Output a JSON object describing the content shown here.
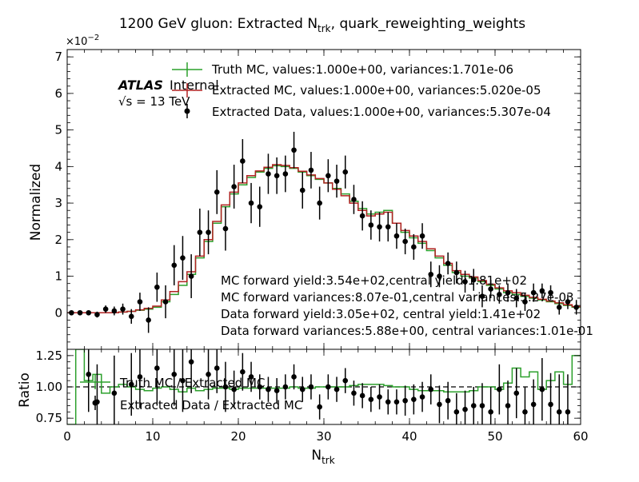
{
  "chart_data": [
    {
      "type": "line",
      "panel": "main",
      "title_prefix": "1200 GeV gluon: Extracted N",
      "title_sub": "trk",
      "title_suffix": ", quark_reweighting_weights",
      "ylabel": "Normalized",
      "y_multiplier": "×10",
      "y_multiplier_exp": "−2",
      "xlim": [
        0,
        60
      ],
      "ylim": [
        -1,
        7.2
      ],
      "x_ticks": [
        0,
        10,
        20,
        30,
        40,
        50,
        60
      ],
      "y_ticks": [
        0,
        1,
        2,
        3,
        4,
        5,
        6,
        7
      ],
      "atlas_label": "ATLAS",
      "atlas_sub": "Internal",
      "energy_label": "√s = 13 TeV",
      "annotations": [
        "MC forward yield:3.54e+02,central yield:1.81e+02",
        "MC forward variances:8.07e-01,central variances:5.27e-03",
        "Data forward yield:3.05e+02, central yield:1.41e+02",
        "Data forward variances:5.88e+00, central variances:1.01e-01"
      ],
      "legend_position": "top-right",
      "series": [
        {
          "name": "Truth MC, values:1.000e+00, variances:1.701e-06",
          "style": "step",
          "color": "#2ca02c",
          "values": [
            0,
            0,
            0,
            0,
            0,
            0,
            0.02,
            0.04,
            0.07,
            0.1,
            0.15,
            0.3,
            0.5,
            0.75,
            1.05,
            1.5,
            1.95,
            2.45,
            2.9,
            3.25,
            3.5,
            3.7,
            3.85,
            3.95,
            4.02,
            4.0,
            3.95,
            3.85,
            3.75,
            3.65,
            3.55,
            3.4,
            3.25,
            3.05,
            2.85,
            2.7,
            2.75,
            2.8,
            2.45,
            2.2,
            2.05,
            1.9,
            1.7,
            1.5,
            1.3,
            1.1,
            1.0,
            0.95,
            0.85,
            0.75,
            0.65,
            0.55,
            0.5,
            0.45,
            0.4,
            0.35,
            0.3,
            0.25,
            0.2,
            0.15
          ]
        },
        {
          "name": "Extracted MC, values:1.000e+00, variances:5.020e-05",
          "style": "step",
          "color": "#b22222",
          "values": [
            0,
            0,
            0,
            0,
            0,
            0,
            0.02,
            0.04,
            0.08,
            0.12,
            0.18,
            0.35,
            0.58,
            0.85,
            1.12,
            1.55,
            2.0,
            2.5,
            2.95,
            3.3,
            3.55,
            3.75,
            3.88,
            3.98,
            4.05,
            4.03,
            3.97,
            3.87,
            3.77,
            3.67,
            3.55,
            3.38,
            3.2,
            3.0,
            2.8,
            2.65,
            2.7,
            2.75,
            2.45,
            2.25,
            2.1,
            1.95,
            1.75,
            1.55,
            1.35,
            1.15,
            1.05,
            0.98,
            0.88,
            0.78,
            0.68,
            0.6,
            0.55,
            0.48,
            0.42,
            0.37,
            0.32,
            0.27,
            0.22,
            0.17
          ]
        },
        {
          "name": "Extracted Data, values:1.000e+00, variances:5.307e-04",
          "style": "points",
          "color": "#000000",
          "x": [
            0.5,
            1.5,
            2.5,
            3.5,
            4.5,
            5.5,
            6.5,
            7.5,
            8.5,
            9.5,
            10.5,
            11.5,
            12.5,
            13.5,
            14.5,
            15.5,
            16.5,
            17.5,
            18.5,
            19.5,
            20.5,
            21.5,
            22.5,
            23.5,
            24.5,
            25.5,
            26.5,
            27.5,
            28.5,
            29.5,
            30.5,
            31.5,
            32.5,
            33.5,
            34.5,
            35.5,
            36.5,
            37.5,
            38.5,
            39.5,
            40.5,
            41.5,
            42.5,
            43.5,
            44.5,
            45.5,
            46.5,
            47.5,
            48.5,
            49.5,
            50.5,
            51.5,
            52.5,
            53.5,
            54.5,
            55.5,
            56.5,
            57.5,
            58.5,
            59.5
          ],
          "values": [
            0,
            0,
            0,
            -0.05,
            0.1,
            0.05,
            0.1,
            -0.1,
            0.3,
            -0.2,
            0.7,
            0.3,
            1.3,
            1.5,
            1.0,
            2.2,
            2.2,
            3.3,
            2.3,
            3.45,
            4.15,
            3.0,
            2.9,
            3.8,
            3.75,
            3.8,
            4.45,
            3.35,
            3.9,
            3.0,
            3.75,
            3.6,
            3.85,
            3.1,
            2.65,
            2.4,
            2.35,
            2.35,
            2.1,
            1.95,
            1.8,
            2.1,
            1.05,
            1.0,
            1.35,
            1.1,
            0.85,
            0.9,
            0.45,
            0.65,
            0.5,
            0.55,
            0.4,
            0.3,
            0.55,
            0.6,
            0.55,
            0.15,
            0.3,
            0.15
          ],
          "errors": [
            0.05,
            0.05,
            0.05,
            0.08,
            0.1,
            0.12,
            0.15,
            0.2,
            0.25,
            0.35,
            0.4,
            0.45,
            0.55,
            0.6,
            0.6,
            0.65,
            0.6,
            0.6,
            0.6,
            0.6,
            0.6,
            0.55,
            0.55,
            0.55,
            0.5,
            0.5,
            0.5,
            0.5,
            0.5,
            0.45,
            0.45,
            0.45,
            0.45,
            0.4,
            0.4,
            0.4,
            0.4,
            0.4,
            0.35,
            0.35,
            0.35,
            0.35,
            0.35,
            0.3,
            0.3,
            0.3,
            0.3,
            0.3,
            0.3,
            0.25,
            0.25,
            0.25,
            0.25,
            0.25,
            0.25,
            0.2,
            0.2,
            0.2,
            0.2,
            0.2
          ]
        }
      ]
    },
    {
      "type": "line",
      "panel": "ratio",
      "xlabel_main": "N",
      "xlabel_sub": "trk",
      "ylabel": "Ratio",
      "xlim": [
        0,
        60
      ],
      "ylim": [
        0.7,
        1.3
      ],
      "x_ticks": [
        0,
        10,
        20,
        30,
        40,
        50,
        60
      ],
      "y_ticks": [
        0.75,
        1.0,
        1.25
      ],
      "y_tick_labels": [
        "0.75",
        "1.00",
        "1.25"
      ],
      "reference_line": 1.0,
      "series": [
        {
          "name": "Truth MC / Extracted MC",
          "style": "step",
          "color": "#2ca02c",
          "values": [
            0.7,
            1.3,
            1.05,
            1.1,
            0.95,
            1.0,
            1.02,
            1.0,
            0.98,
            0.97,
            0.99,
            1.0,
            0.98,
            0.96,
            0.99,
            0.97,
            0.98,
            0.99,
            0.99,
            0.98,
            0.99,
            0.99,
            0.99,
            0.99,
            0.99,
            0.99,
            1.0,
            0.99,
            0.99,
            1.0,
            1.0,
            1.0,
            1.0,
            1.01,
            1.02,
            1.02,
            1.02,
            1.01,
            1.0,
            1.0,
            0.98,
            0.97,
            0.97,
            0.97,
            0.96,
            0.96,
            0.96,
            0.97,
            1.0,
            1.0,
            0.98,
            1.03,
            1.15,
            1.08,
            1.12,
            0.98,
            1.05,
            1.12,
            1.02,
            1.25
          ]
        },
        {
          "name": "Extracted Data / Extracted MC",
          "style": "points",
          "color": "#000000",
          "x": [
            2.5,
            3.5,
            5.5,
            7.5,
            8.5,
            10.5,
            12.5,
            13.5,
            14.5,
            16.5,
            17.5,
            18.5,
            19.5,
            20.5,
            21.5,
            22.5,
            23.5,
            24.5,
            25.5,
            26.5,
            27.5,
            28.5,
            29.5,
            30.5,
            31.5,
            32.5,
            33.5,
            34.5,
            35.5,
            36.5,
            37.5,
            38.5,
            39.5,
            40.5,
            41.5,
            42.5,
            43.5,
            44.5,
            45.5,
            46.5,
            47.5,
            48.5,
            49.5,
            50.5,
            51.5,
            52.5,
            53.5,
            54.5,
            55.5,
            56.5,
            57.5,
            58.5
          ],
          "values": [
            1.1,
            0.88,
            0.95,
            1.02,
            1.08,
            1.15,
            1.1,
            1.05,
            1.2,
            1.1,
            1.15,
            1.0,
            0.98,
            1.12,
            1.08,
            1.0,
            0.98,
            0.97,
            1.0,
            1.08,
            0.98,
            1.0,
            0.84,
            1.0,
            0.98,
            1.05,
            0.95,
            0.93,
            0.9,
            0.92,
            0.88,
            0.88,
            0.89,
            0.9,
            0.92,
            0.98,
            0.86,
            0.89,
            0.8,
            0.82,
            0.85,
            0.85,
            0.8,
            0.98,
            0.85,
            0.95,
            0.8,
            0.86,
            0.98,
            0.86,
            0.8,
            0.8
          ],
          "errors": [
            0.3,
            0.3,
            0.3,
            0.25,
            0.25,
            0.3,
            0.25,
            0.25,
            0.25,
            0.2,
            0.2,
            0.2,
            0.15,
            0.15,
            0.12,
            0.1,
            0.1,
            0.1,
            0.1,
            0.1,
            0.1,
            0.1,
            0.1,
            0.1,
            0.1,
            0.1,
            0.1,
            0.1,
            0.1,
            0.1,
            0.1,
            0.1,
            0.12,
            0.12,
            0.12,
            0.12,
            0.15,
            0.15,
            0.15,
            0.15,
            0.15,
            0.18,
            0.2,
            0.2,
            0.2,
            0.2,
            0.2,
            0.2,
            0.25,
            0.25,
            0.3,
            0.3
          ]
        }
      ]
    }
  ]
}
